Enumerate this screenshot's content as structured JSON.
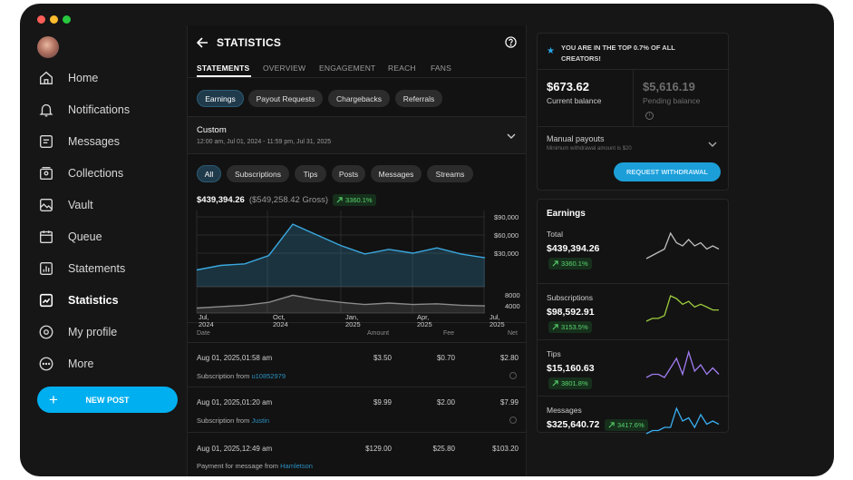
{
  "window": {
    "dot_colors": [
      "#ff5f57",
      "#febc2e",
      "#28c840"
    ]
  },
  "sidebar": {
    "items": [
      {
        "label": "Home",
        "icon": "home-icon"
      },
      {
        "label": "Notifications",
        "icon": "bell-icon"
      },
      {
        "label": "Messages",
        "icon": "message-icon"
      },
      {
        "label": "Collections",
        "icon": "collections-icon"
      },
      {
        "label": "Vault",
        "icon": "vault-icon"
      },
      {
        "label": "Queue",
        "icon": "calendar-icon"
      },
      {
        "label": "Statements",
        "icon": "statements-icon"
      },
      {
        "label": "Statistics",
        "icon": "statistics-icon"
      },
      {
        "label": "My profile",
        "icon": "profile-icon"
      },
      {
        "label": "More",
        "icon": "more-icon"
      }
    ],
    "new_post": "NEW POST"
  },
  "header": {
    "title": "STATISTICS"
  },
  "tabs": [
    "STATEMENTS",
    "OVERVIEW",
    "ENGAGEMENT",
    "REACH",
    "FANS"
  ],
  "subtabs": [
    "Earnings",
    "Payout Requests",
    "Chargebacks",
    "Referrals"
  ],
  "range": {
    "title": "Custom",
    "dates": "12:00 am, Jul 01, 2024 - 11:59 pm, Jul 31, 2025"
  },
  "filters": [
    "All",
    "Subscriptions",
    "Tips",
    "Posts",
    "Messages",
    "Streams"
  ],
  "summary": {
    "net": "$439,394.26",
    "gross": "($549,258.42 Gross)",
    "change": "3360.1%"
  },
  "chart_data": {
    "type": "area",
    "x_ticks": [
      "Jul, 2024",
      "Oct, 2024",
      "Jan, 2025",
      "Apr, 2025",
      "Jul, 2025"
    ],
    "top": {
      "y_ticks": [
        "$90,000",
        "$60,000",
        "$30,000"
      ],
      "ylim": [
        0,
        100000
      ],
      "values": [
        22000,
        28000,
        30000,
        41000,
        82000,
        68000,
        54000,
        43000,
        49000,
        44000,
        51000,
        43000,
        38000
      ]
    },
    "bottom": {
      "y_ticks": [
        "8000",
        "4000"
      ],
      "ylim": [
        0,
        14000
      ],
      "values": [
        3500,
        4500,
        5500,
        7500,
        12500,
        9500,
        7500,
        6000,
        7000,
        6000,
        6500,
        5500,
        5000
      ]
    }
  },
  "table": {
    "headers": [
      "Date",
      "Amount",
      "Fee",
      "Net"
    ],
    "rows": [
      {
        "date": "Aug 01, 2025,01:58 am",
        "amount": "$3.50",
        "fee": "$0.70",
        "net": "$2.80",
        "desc": "Subscription from ",
        "user": "u10852979"
      },
      {
        "date": "Aug 01, 2025,01:20 am",
        "amount": "$9.99",
        "fee": "$2.00",
        "net": "$7.99",
        "desc": "Subscription from ",
        "user": "Justin"
      },
      {
        "date": "Aug 01, 2025,12:49 am",
        "amount": "$129.00",
        "fee": "$25.80",
        "net": "$103.20",
        "desc": "Payment for message from ",
        "user": "Hamletson"
      }
    ]
  },
  "banner": {
    "text": "YOU ARE IN THE TOP 0.7% OF ALL CREATORS!"
  },
  "balance": {
    "current": "$673.62",
    "current_label": "Current balance",
    "pending": "$5,616.19",
    "pending_label": "Pending balance"
  },
  "payouts": {
    "title": "Manual payouts",
    "subtitle": "Minimum withdrawal amount is $20",
    "button": "REQUEST WITHDRAWAL"
  },
  "earnings": {
    "title": "Earnings",
    "items": [
      {
        "label": "Total",
        "value": "$439,394.26",
        "change": "3360.1%",
        "color": "#bdbdbd",
        "spark": [
          2,
          3,
          4,
          5,
          10,
          7,
          6,
          8,
          6,
          7,
          5,
          6,
          5
        ]
      },
      {
        "label": "Subscriptions",
        "value": "$98,592.91",
        "change": "3153.5%",
        "color": "#9ccc3d",
        "spark": [
          2,
          3,
          3,
          4,
          11,
          10,
          8,
          9,
          7,
          8,
          7,
          6,
          6
        ]
      },
      {
        "label": "Tips",
        "value": "$15,160.63",
        "change": "3801.8%",
        "color": "#a07cf0",
        "spark": [
          2,
          3,
          3,
          2,
          5,
          8,
          3,
          10,
          4,
          6,
          3,
          5,
          3
        ]
      },
      {
        "label": "Messages",
        "value": "$325,640.72",
        "change": "3417.6%",
        "color": "#3aaef0",
        "spark": [
          2,
          3,
          3,
          4,
          4,
          10,
          6,
          7,
          4,
          8,
          5,
          6,
          5
        ]
      }
    ]
  }
}
